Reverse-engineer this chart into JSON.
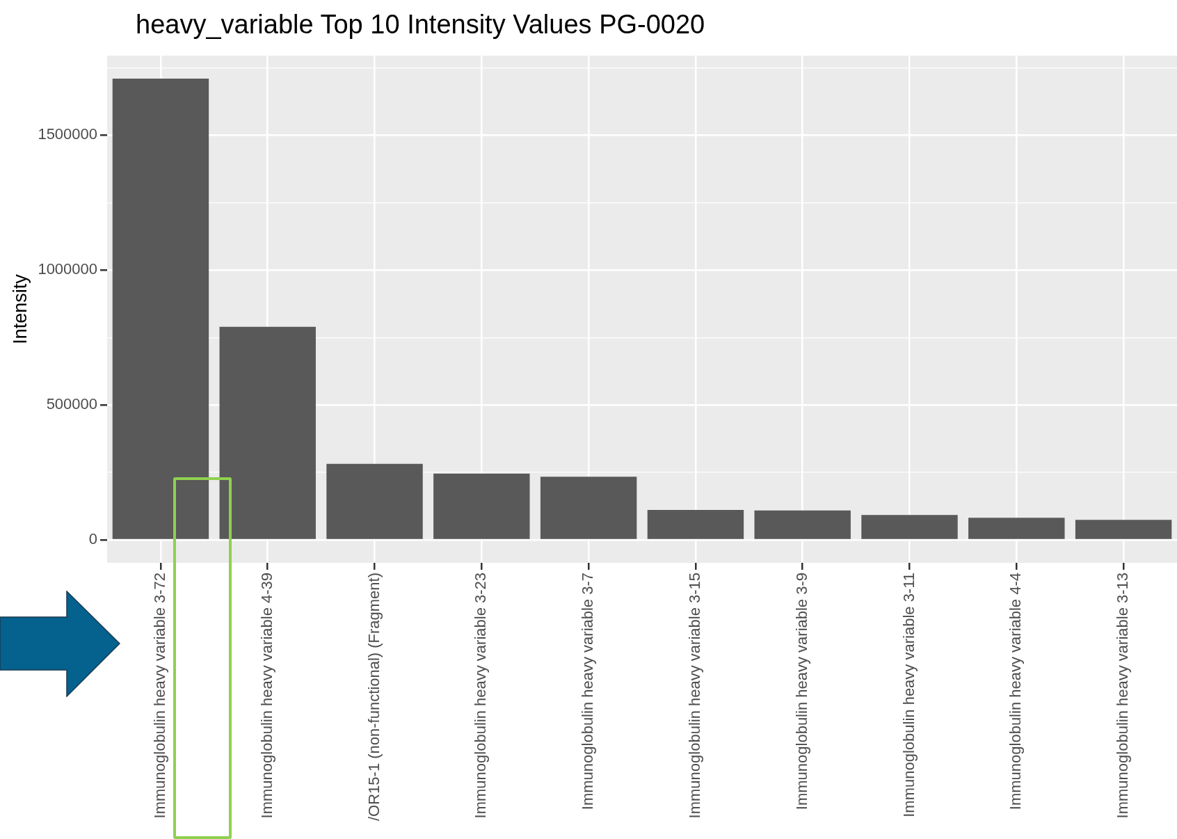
{
  "chart_data": {
    "type": "bar",
    "title": "heavy_variable Top 10 Intensity Values PG-0020",
    "ylabel": "Intensity",
    "categories": [
      "Immunoglobulin heavy variable 3-72",
      "Immunoglobulin heavy variable 4-39",
      "/OR15-1 (non-functional) (Fragment)",
      "Immunoglobulin heavy variable 3-23",
      "Immunoglobulin heavy variable 3-7",
      "Immunoglobulin heavy variable 3-15",
      "Immunoglobulin heavy variable 3-9",
      "Immunoglobulin heavy variable 3-11",
      "Immunoglobulin heavy variable 4-4",
      "Immunoglobulin heavy variable 3-13"
    ],
    "values": [
      1710000,
      790000,
      282000,
      246000,
      234000,
      111000,
      109000,
      92000,
      82000,
      74000
    ],
    "color": "#595959",
    "ylim": [
      -85000,
      1795000
    ],
    "yticks": [
      0,
      {
        "value": 250000,
        "label": null
      },
      500000,
      {
        "value": 750000,
        "label": null
      },
      1000000,
      {
        "value": 1250000,
        "label": null
      },
      1500000,
      {
        "value": 1750000,
        "label": null
      }
    ],
    "grid": true
  }
}
